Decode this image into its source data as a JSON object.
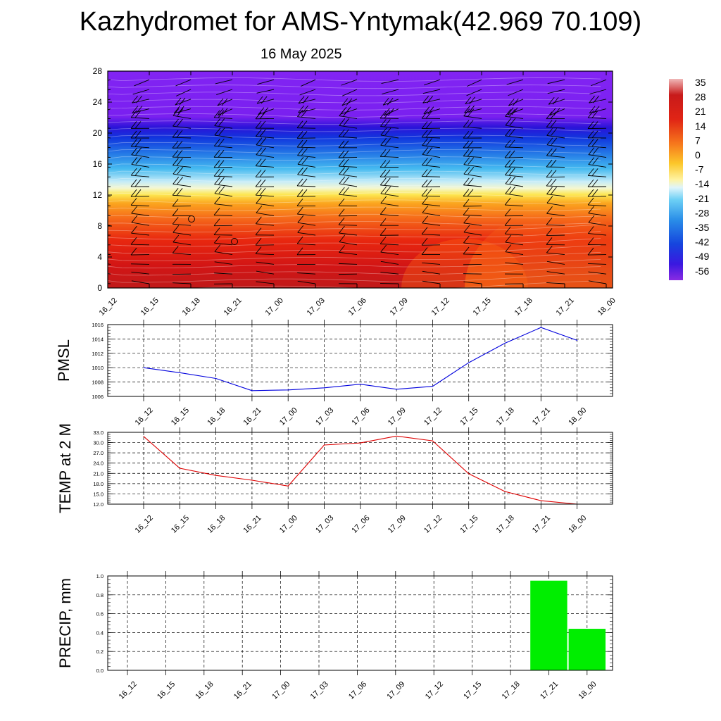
{
  "header": {
    "title": "Kazhydromet for AMS-Yntymak(42.969 70.109)",
    "date": "16 May 2025"
  },
  "time_labels": [
    "16_12",
    "16_15",
    "16_18",
    "16_21",
    "17_00",
    "17_03",
    "17_06",
    "17_09",
    "17_12",
    "17_15",
    "17_18",
    "17_21",
    "18_00"
  ],
  "colorbar": {
    "labels": [
      "35",
      "28",
      "21",
      "14",
      "7",
      "0",
      "-7",
      "-14",
      "-21",
      "-28",
      "-35",
      "-42",
      "-49",
      "-56"
    ]
  },
  "chart_data": [
    {
      "type": "heatmap",
      "title": "Kazhydromet for AMS-Yntymak(42.969 70.109)",
      "subtitle": "16 May 2025",
      "x": [
        "16_12",
        "16_15",
        "16_18",
        "16_21",
        "17_00",
        "17_03",
        "17_06",
        "17_09",
        "17_12",
        "17_15",
        "17_18",
        "17_21",
        "18_00"
      ],
      "yticks": [
        0,
        4,
        8,
        12,
        16,
        20,
        24,
        28
      ],
      "ylim": [
        0,
        28
      ],
      "colorbar_range": [
        -56,
        35
      ]
    },
    {
      "type": "line",
      "ylabel": "PMSL",
      "categories": [
        "16_12",
        "16_15",
        "16_18",
        "16_21",
        "17_00",
        "17_03",
        "17_06",
        "17_09",
        "17_12",
        "17_15",
        "17_18",
        "17_21",
        "18_00"
      ],
      "values": [
        1010.0,
        1009.3,
        1008.5,
        1006.8,
        1006.9,
        1007.2,
        1007.7,
        1007.0,
        1007.4,
        1010.7,
        1013.4,
        1015.6,
        1013.8
      ],
      "ylim": [
        1006,
        1016
      ],
      "yticks": [
        "1006",
        "1008",
        "1010",
        "1012",
        "1014",
        "1016"
      ],
      "color": "#0000dd"
    },
    {
      "type": "line",
      "ylabel": "TEMP at 2 M",
      "categories": [
        "16_12",
        "16_15",
        "16_18",
        "16_21",
        "17_00",
        "17_03",
        "17_06",
        "17_09",
        "17_12",
        "17_15",
        "17_18",
        "17_21",
        "18_00"
      ],
      "values": [
        31.8,
        22.5,
        20.4,
        19.0,
        17.3,
        29.3,
        29.9,
        31.9,
        30.5,
        20.9,
        15.7,
        13.0,
        12.0
      ],
      "ylim": [
        12,
        33
      ],
      "yticks": [
        "12.0",
        "15.0",
        "18.0",
        "21.0",
        "24.0",
        "27.0",
        "30.0",
        "33.0"
      ],
      "color": "#dd0000"
    },
    {
      "type": "bar",
      "ylabel": "PRECIP, mm",
      "categories": [
        "16_12",
        "16_15",
        "16_18",
        "16_21",
        "17_00",
        "17_03",
        "17_06",
        "17_09",
        "17_12",
        "17_15",
        "17_18",
        "17_21",
        "18_00"
      ],
      "values": [
        0,
        0,
        0,
        0,
        0,
        0,
        0,
        0,
        0,
        0,
        0,
        0.95,
        0.44
      ],
      "ylim": [
        0,
        1.0
      ],
      "yticks": [
        "0.0",
        "0.2",
        "0.4",
        "0.6",
        "0.8",
        "1.0"
      ],
      "color": "#00ee00"
    }
  ]
}
